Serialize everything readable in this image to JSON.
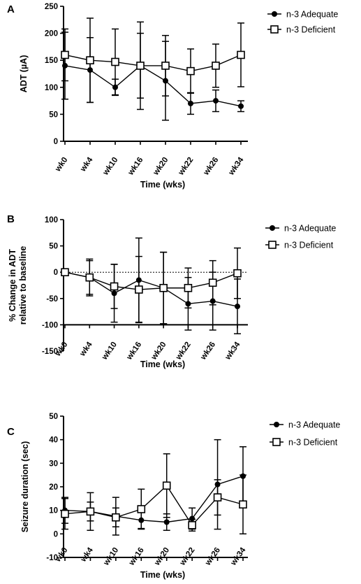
{
  "chart_data": [
    {
      "panel": "A",
      "type": "line",
      "categories": [
        "wk0",
        "wk4",
        "wk10",
        "wk16",
        "wk20",
        "wk22",
        "wk26",
        "wk34"
      ],
      "xlabel": "Time (wks)",
      "ylabel": "ADT (µA)",
      "ylim": [
        0,
        250
      ],
      "yticks": [
        0,
        50,
        100,
        150,
        200,
        250
      ],
      "zero_line": false,
      "legend": "top-right",
      "series": [
        {
          "name": "n-3 Adequate",
          "marker": "filled-circle",
          "values": [
            140,
            132,
            100,
            140,
            112,
            70,
            75,
            65
          ],
          "error": [
            62,
            60,
            15,
            60,
            73,
            20,
            20,
            10
          ]
        },
        {
          "name": "n-3 Deficient",
          "marker": "open-square",
          "values": [
            160,
            150,
            147,
            140,
            140,
            130,
            140,
            160
          ],
          "error": [
            48,
            78,
            61,
            81,
            56,
            41,
            40,
            59
          ]
        }
      ]
    },
    {
      "panel": "B",
      "type": "line",
      "categories": [
        "wk0",
        "wk4",
        "wk10",
        "wk16",
        "wk20",
        "wk22",
        "wk26",
        "wk34"
      ],
      "xlabel": "Time (wks)",
      "ylabel": "% Change in ADT relative to baseline",
      "ylabel_lines": [
        "% Change in ADT",
        "relative to baseline"
      ],
      "ylim": [
        -150,
        100
      ],
      "yticks": [
        -150,
        -100,
        -50,
        0,
        50,
        100
      ],
      "zero_line": true,
      "legend": "top-right",
      "series": [
        {
          "name": "n-3 Adequate",
          "marker": "filled-circle",
          "values": [
            0,
            -10,
            -40,
            -15,
            -30,
            -60,
            -55,
            -65
          ],
          "error": [
            0,
            32,
            55,
            80,
            68,
            50,
            55,
            52
          ]
        },
        {
          "name": "n-3 Deficient",
          "marker": "open-square",
          "values": [
            0,
            -10,
            -27,
            -33,
            -30,
            -30,
            -20,
            -2
          ],
          "error": [
            0,
            35,
            42,
            63,
            68,
            38,
            42,
            48
          ]
        }
      ]
    },
    {
      "panel": "C",
      "type": "line",
      "categories": [
        "wk0",
        "wk4",
        "wk10",
        "wk16",
        "wk20",
        "wk22",
        "wk26",
        "wk34"
      ],
      "xlabel": "Time (wks)",
      "ylabel": "Seizure duration (sec)",
      "ylim": [
        -10,
        50
      ],
      "yticks": [
        -10,
        0,
        10,
        20,
        30,
        40,
        50
      ],
      "zero_line": false,
      "legend": "top-right",
      "series": [
        {
          "name": "n-3 Adequate",
          "marker": "filled-circle",
          "values": [
            10,
            9.5,
            7.5,
            5.8,
            5,
            6.5,
            21,
            24.5
          ],
          "error": [
            5.5,
            8,
            8,
            3.5,
            3.5,
            4.5,
            19,
            12.5
          ]
        },
        {
          "name": "n-3 Deficient",
          "marker": "open-square",
          "values": [
            8.5,
            9.5,
            7,
            10.5,
            20.5,
            3.7,
            15.5,
            12.5
          ],
          "error": [
            6.5,
            4,
            4,
            8.5,
            13.5,
            2.5,
            7.5,
            12.5
          ]
        }
      ]
    }
  ]
}
